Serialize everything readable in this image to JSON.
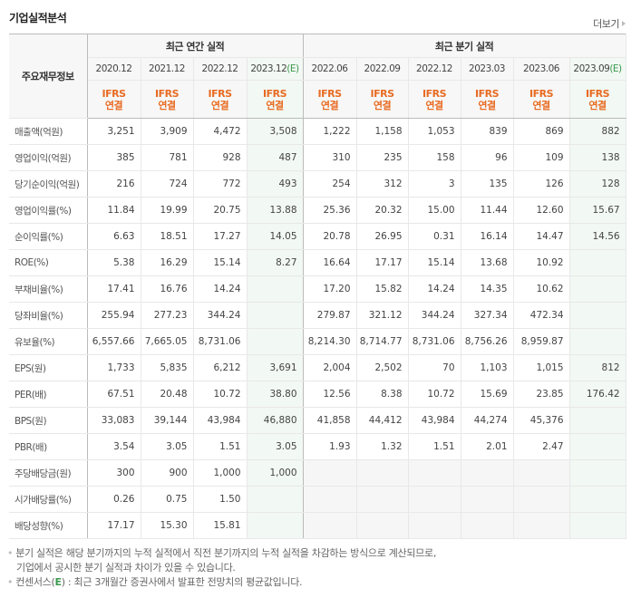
{
  "header": {
    "title": "기업실적분석",
    "more_label": "더보기"
  },
  "table": {
    "label_header": "주요재무정보",
    "annual_group": "최근 연간 실적",
    "quarterly_group": "최근 분기 실적",
    "periods": [
      {
        "label": "2020.12",
        "est": "",
        "basis1": "IFRS",
        "basis2": "연결"
      },
      {
        "label": "2021.12",
        "est": "",
        "basis1": "IFRS",
        "basis2": "연결"
      },
      {
        "label": "2022.12",
        "est": "",
        "basis1": "IFRS",
        "basis2": "연결"
      },
      {
        "label": "2023.12",
        "est": "(E)",
        "basis1": "IFRS",
        "basis2": "연결"
      },
      {
        "label": "2022.06",
        "est": "",
        "basis1": "IFRS",
        "basis2": "연결"
      },
      {
        "label": "2022.09",
        "est": "",
        "basis1": "IFRS",
        "basis2": "연결"
      },
      {
        "label": "2022.12",
        "est": "",
        "basis1": "IFRS",
        "basis2": "연결"
      },
      {
        "label": "2023.03",
        "est": "",
        "basis1": "IFRS",
        "basis2": "연결"
      },
      {
        "label": "2023.06",
        "est": "",
        "basis1": "IFRS",
        "basis2": "연결"
      },
      {
        "label": "2023.09",
        "est": "(E)",
        "basis1": "IFRS",
        "basis2": "연결"
      }
    ],
    "rows": [
      {
        "label": "매출액(억원)",
        "values": [
          "3,251",
          "3,909",
          "4,472",
          "3,508",
          "1,222",
          "1,158",
          "1,053",
          "839",
          "869",
          "882"
        ]
      },
      {
        "label": "영업이익(억원)",
        "values": [
          "385",
          "781",
          "928",
          "487",
          "310",
          "235",
          "158",
          "96",
          "109",
          "138"
        ]
      },
      {
        "label": "당기순이익(억원)",
        "values": [
          "216",
          "724",
          "772",
          "493",
          "254",
          "312",
          "3",
          "135",
          "126",
          "128"
        ]
      },
      {
        "label": "영업이익률(%)",
        "values": [
          "11.84",
          "19.99",
          "20.75",
          "13.88",
          "25.36",
          "20.32",
          "15.00",
          "11.44",
          "12.60",
          "15.67"
        ]
      },
      {
        "label": "순이익률(%)",
        "values": [
          "6.63",
          "18.51",
          "17.27",
          "14.05",
          "20.78",
          "26.95",
          "0.31",
          "16.14",
          "14.47",
          "14.56"
        ]
      },
      {
        "label": "ROE(%)",
        "values": [
          "5.38",
          "16.29",
          "15.14",
          "8.27",
          "16.64",
          "17.17",
          "15.14",
          "13.68",
          "10.92",
          ""
        ]
      },
      {
        "label": "부채비율(%)",
        "values": [
          "17.41",
          "16.76",
          "14.24",
          "",
          "17.20",
          "15.82",
          "14.24",
          "14.35",
          "10.62",
          ""
        ]
      },
      {
        "label": "당좌비율(%)",
        "values": [
          "255.94",
          "277.23",
          "344.24",
          "",
          "279.87",
          "321.12",
          "344.24",
          "327.34",
          "472.34",
          ""
        ]
      },
      {
        "label": "유보율(%)",
        "values": [
          "6,557.66",
          "7,665.05",
          "8,731.06",
          "",
          "8,214.30",
          "8,714.77",
          "8,731.06",
          "8,756.26",
          "8,959.87",
          ""
        ]
      },
      {
        "label": "EPS(원)",
        "values": [
          "1,733",
          "5,835",
          "6,212",
          "3,691",
          "2,004",
          "2,502",
          "70",
          "1,103",
          "1,015",
          "812"
        ]
      },
      {
        "label": "PER(배)",
        "values": [
          "67.51",
          "20.48",
          "10.72",
          "38.80",
          "12.56",
          "8.38",
          "10.72",
          "15.69",
          "23.85",
          "176.42"
        ]
      },
      {
        "label": "BPS(원)",
        "values": [
          "33,083",
          "39,144",
          "43,984",
          "46,880",
          "41,858",
          "44,412",
          "43,984",
          "44,274",
          "45,376",
          ""
        ]
      },
      {
        "label": "PBR(배)",
        "values": [
          "3.54",
          "3.05",
          "1.51",
          "3.05",
          "1.93",
          "1.32",
          "1.51",
          "2.01",
          "2.47",
          ""
        ]
      },
      {
        "label": "주당배당금(원)",
        "values": [
          "300",
          "900",
          "1,000",
          "1,000",
          "",
          "",
          "",
          "",
          "",
          ""
        ]
      },
      {
        "label": "시가배당률(%)",
        "values": [
          "0.26",
          "0.75",
          "1.50",
          "",
          "",
          "",
          "",
          "",
          "",
          ""
        ]
      },
      {
        "label": "배당성향(%)",
        "values": [
          "17.17",
          "15.30",
          "15.81",
          "",
          "",
          "",
          "",
          "",
          "",
          ""
        ]
      }
    ]
  },
  "notes": {
    "line1": "분기 실적은 해당 분기까지의 누적 실적에서 직전 분기까지의 누적 실적을 차감하는 방식으로 계산되므로,",
    "line2": "기업에서 공시한 분기 실적과 차이가 있을 수 있습니다.",
    "line3_prefix": "컨센서스(",
    "line3_e": "E",
    "line3_suffix": ") : 최근 3개월간 증권사에서 발표한 전망치의 평균값입니다."
  },
  "colors": {
    "accent_ifrs": "#e86b22",
    "estimate_green": "#3a9a4c",
    "estimate_bg": "#f2f8f3",
    "header_bg": "#f7f7f7"
  }
}
